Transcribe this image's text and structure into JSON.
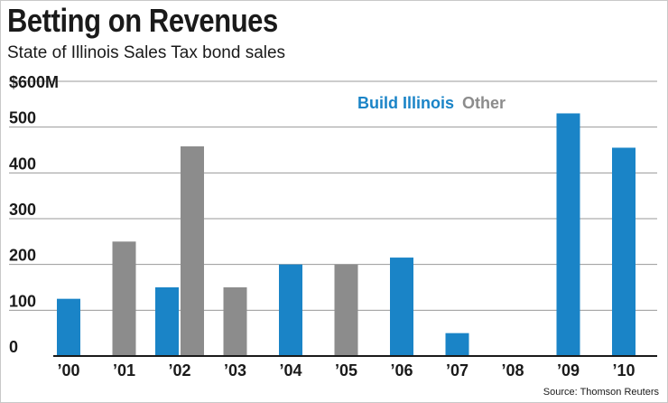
{
  "title": "Betting on Revenues",
  "subtitle": "State of Illinois Sales Tax bond sales",
  "source": "Source: Thomson Reuters",
  "chart_data": {
    "type": "bar",
    "title": "Betting on Revenues",
    "subtitle": "State of Illinois Sales Tax bond sales",
    "xlabel": "",
    "ylabel": "",
    "categories": [
      "’00",
      "’01",
      "’02",
      "’03",
      "’04",
      "’05",
      "’06",
      "’07",
      "’08",
      "’09",
      "’10"
    ],
    "series": [
      {
        "name": "Build Illinois",
        "color": "#1a84c7",
        "values": [
          125,
          0,
          150,
          0,
          200,
          0,
          215,
          50,
          0,
          530,
          455
        ]
      },
      {
        "name": "Other",
        "color": "#8c8c8c",
        "values": [
          0,
          250,
          458,
          150,
          0,
          200,
          0,
          0,
          0,
          0,
          0
        ]
      }
    ],
    "ylim": [
      0,
      600
    ],
    "yticks": [
      0,
      100,
      200,
      300,
      400,
      500,
      600
    ],
    "ytick_labels": [
      "0",
      "100",
      "200",
      "300",
      "400",
      "500",
      "$600M"
    ],
    "grid": true,
    "legend_position": "top-center"
  }
}
